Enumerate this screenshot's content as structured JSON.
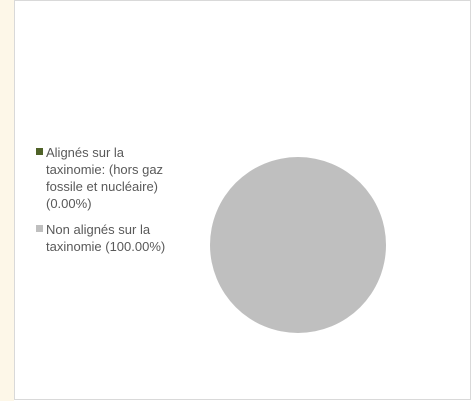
{
  "chart_data": {
    "type": "pie",
    "title": "",
    "legend_position": "left",
    "slices": [
      {
        "label": "Alignés sur la\ntaxinomie: (hors gaz\nfossile et nucléaire)\n(0.00%)",
        "value": 0.0,
        "color": "#4f6228"
      },
      {
        "label": "Non alignés sur la\ntaxinomie (100.00%)",
        "value": 100.0,
        "color": "#bfbfbf"
      }
    ]
  }
}
